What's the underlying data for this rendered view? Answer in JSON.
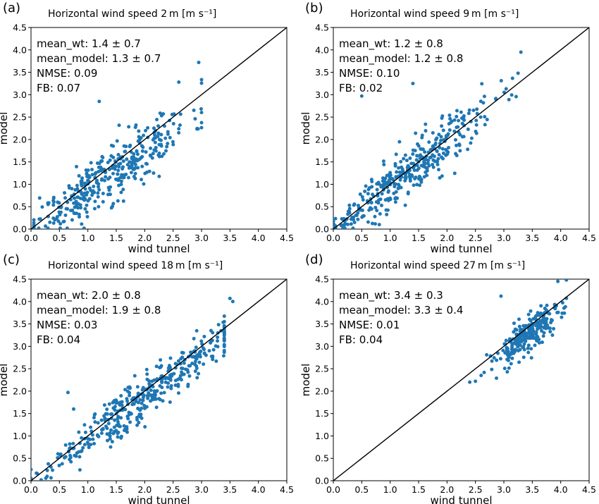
{
  "figure": {
    "accent_color": "#1f77b4",
    "line_color": "#000000"
  },
  "chart_data": [
    {
      "type": "scatter",
      "panel_label": "(a)",
      "title": "Horizontal wind speed 2 m [m s⁻¹]",
      "xlabel": "wind tunnel",
      "ylabel": "model",
      "xlim": [
        0,
        4.5
      ],
      "ylim": [
        0,
        4.5
      ],
      "xticks": [
        "0.0",
        "0.5",
        "1.0",
        "1.5",
        "2.0",
        "2.5",
        "3.0",
        "3.5",
        "4.0",
        "4.5"
      ],
      "yticks": [
        "0.0",
        "0.5",
        "1.0",
        "1.5",
        "2.0",
        "2.5",
        "3.0",
        "3.5",
        "4.0",
        "4.5"
      ],
      "reference_line": "1:1",
      "grid": false,
      "stats": [
        "mean_wt: 1.4 ± 0.7",
        "mean_model: 1.3 ± 0.7",
        "NMSE: 0.09",
        "FB: 0.07"
      ],
      "points_generation": {
        "n": 380,
        "x_mean": 1.4,
        "x_sd": 0.7,
        "y_slope": 0.88,
        "noise": 0.35,
        "x_min": 0.05,
        "x_max": 3.0,
        "seed": 11
      },
      "notable_points": [
        [
          2.95,
          3.72
        ],
        [
          1.2,
          2.85
        ],
        [
          2.6,
          3.28
        ],
        [
          0.3,
          0.55
        ]
      ]
    },
    {
      "type": "scatter",
      "panel_label": "(b)",
      "title": "Horizontal wind speed 9 m [m s⁻¹]",
      "xlabel": "wind tunnel",
      "ylabel": "model",
      "xlim": [
        0,
        4.5
      ],
      "ylim": [
        0,
        4.5
      ],
      "xticks": [
        "0.0",
        "0.5",
        "1.0",
        "1.5",
        "2.0",
        "2.5",
        "3.0",
        "3.5",
        "4.0",
        "4.5"
      ],
      "yticks": [
        "0.0",
        "0.5",
        "1.0",
        "1.5",
        "2.0",
        "2.5",
        "3.0",
        "3.5",
        "4.0",
        "4.5"
      ],
      "reference_line": "1:1",
      "grid": false,
      "stats": [
        "mean_wt: 1.2 ± 0.8",
        "mean_model: 1.2 ± 0.8",
        "NMSE: 0.10",
        "FB: 0.02"
      ],
      "points_generation": {
        "n": 400,
        "x_mean": 1.2,
        "x_sd": 0.8,
        "y_slope": 0.97,
        "noise": 0.3,
        "x_min": 0.0,
        "x_max": 3.3,
        "seed": 23
      },
      "notable_points": [
        [
          3.3,
          3.95
        ],
        [
          0.5,
          2.97
        ],
        [
          1.4,
          3.25
        ],
        [
          3.25,
          3.48
        ]
      ]
    },
    {
      "type": "scatter",
      "panel_label": "(c)",
      "title": "Horizontal wind speed 18 m [m s⁻¹]",
      "xlabel": "wind tunnel",
      "ylabel": "model",
      "xlim": [
        0,
        4.5
      ],
      "ylim": [
        0,
        4.5
      ],
      "xticks": [
        "0.0",
        "0.5",
        "1.0",
        "1.5",
        "2.0",
        "2.5",
        "3.0",
        "3.5",
        "4.0",
        "4.5"
      ],
      "yticks": [
        "0.0",
        "0.5",
        "1.0",
        "1.5",
        "2.0",
        "2.5",
        "3.0",
        "3.5",
        "4.0",
        "4.5"
      ],
      "reference_line": "1:1",
      "grid": false,
      "stats": [
        "mean_wt: 2.0 ± 0.8",
        "mean_model: 1.9 ± 0.8",
        "NMSE: 0.03",
        "FB: 0.04"
      ],
      "points_generation": {
        "n": 400,
        "x_mean": 2.0,
        "x_sd": 0.8,
        "y_slope": 0.95,
        "noise": 0.25,
        "x_min": 0.0,
        "x_max": 3.4,
        "seed": 37
      },
      "notable_points": [
        [
          3.5,
          4.07
        ],
        [
          3.55,
          4.0
        ],
        [
          0.65,
          1.97
        ],
        [
          0.75,
          1.6
        ],
        [
          0.0,
          0.25
        ]
      ]
    },
    {
      "type": "scatter",
      "panel_label": "(d)",
      "title": "Horizontal wind speed 27 m [m s⁻¹]",
      "xlabel": "wind tunnel",
      "ylabel": "model",
      "xlim": [
        0,
        4.5
      ],
      "ylim": [
        0,
        4.5
      ],
      "xticks": [
        "0.0",
        "0.5",
        "1.0",
        "1.5",
        "2.0",
        "2.5",
        "3.0",
        "3.5",
        "4.0",
        "4.5"
      ],
      "yticks": [
        "0.0",
        "0.5",
        "1.0",
        "1.5",
        "2.0",
        "2.5",
        "3.0",
        "3.5",
        "4.0",
        "4.5"
      ],
      "reference_line": "1:1",
      "grid": false,
      "stats": [
        "mean_wt: 3.4 ± 0.3",
        "mean_model: 3.3 ± 0.4",
        "NMSE: 0.01",
        "FB: 0.04"
      ],
      "points_generation": {
        "n": 260,
        "x_mean": 3.45,
        "x_sd": 0.3,
        "y_slope": 0.95,
        "noise": 0.2,
        "x_min": 2.4,
        "x_max": 4.1,
        "seed": 53
      },
      "notable_points": [
        [
          4.1,
          4.48
        ],
        [
          3.95,
          4.45
        ],
        [
          2.95,
          4.12
        ],
        [
          2.4,
          2.2
        ],
        [
          2.5,
          2.22
        ],
        [
          2.6,
          2.35
        ]
      ]
    }
  ]
}
